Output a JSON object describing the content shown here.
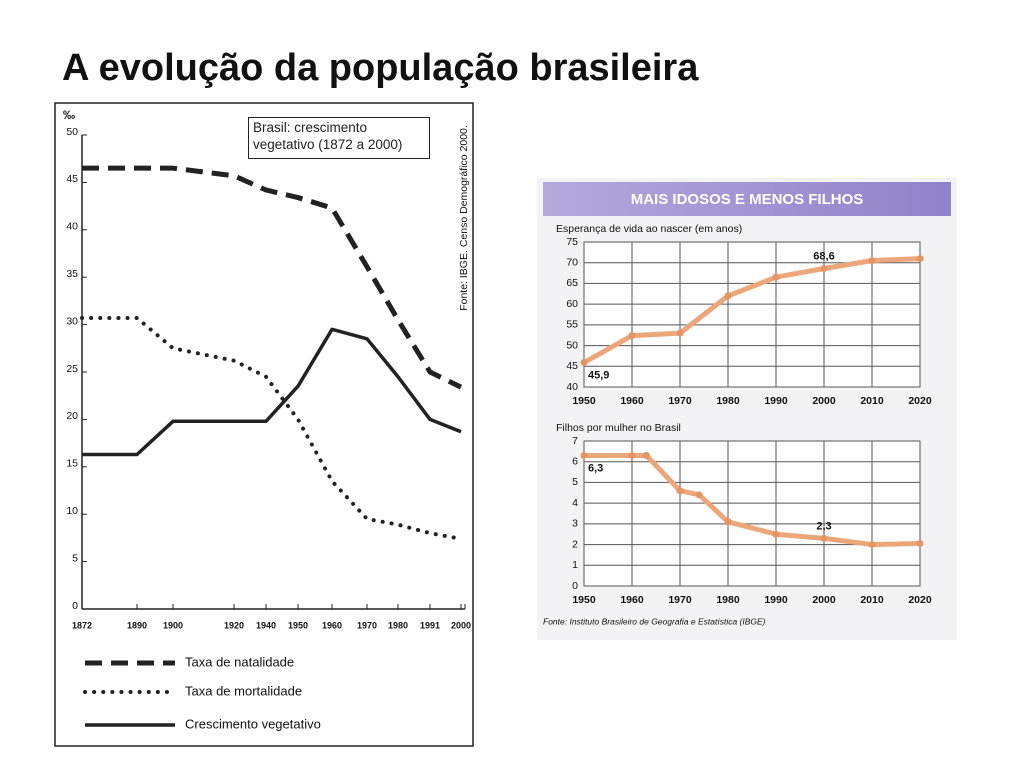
{
  "title": "A evolução da população brasileira",
  "panel": {
    "title": "MAIS IDOSOS E MENOS FILHOS",
    "source": "Fonte: Instituto Brasileiro de Geografia e Estatística (IBGE)"
  },
  "chart_data": [
    {
      "type": "line",
      "ylabel": "‰",
      "annotation": "Brasil: crescimento vegetativo (1872 a 2000)",
      "source": "Fonte: IBGE. Censo Demográfico 2000.",
      "categories": [
        "1872",
        "1890",
        "1900",
        "1920",
        "1940",
        "1950",
        "1960",
        "1970",
        "1980",
        "1991",
        "2000"
      ],
      "ylim": [
        0,
        50
      ],
      "yticks": [
        0,
        5,
        10,
        15,
        20,
        25,
        30,
        35,
        40,
        45,
        50
      ],
      "grid": false,
      "series": [
        {
          "name": "Taxa de natalidade",
          "color": "#222222",
          "dash": "dashed",
          "values": [
            46.5,
            46.5,
            46.5,
            45.7,
            44.2,
            43.4,
            42.3,
            36.1,
            30.5,
            25,
            23.4
          ]
        },
        {
          "name": "Taxa de mortalidade",
          "color": "#222222",
          "dash": "dotted",
          "values": [
            30.7,
            30.7,
            27.5,
            26.2,
            24.5,
            20,
            13.5,
            9.5,
            8.9,
            8,
            7.4
          ]
        },
        {
          "name": "Crescimento vegetativo",
          "color": "#222222",
          "dash": "solid",
          "values": [
            16.3,
            16.3,
            19.8,
            19.8,
            19.8,
            23.5,
            29.5,
            28.5,
            24.5,
            20,
            18.7
          ]
        }
      ]
    },
    {
      "type": "line",
      "ylabel": "Esperança de vida ao nascer (em anos)",
      "xlim": [
        1950,
        2020
      ],
      "xticks": [
        1950,
        1960,
        1970,
        1980,
        1990,
        2000,
        2010,
        2020
      ],
      "ylim": [
        40,
        75
      ],
      "yticks": [
        40,
        45,
        50,
        55,
        60,
        65,
        70,
        75
      ],
      "grid": true,
      "series": [
        {
          "color": "#eba77a",
          "x": [
            1950,
            1960,
            1970,
            1980,
            1990,
            2000,
            2010,
            2020
          ],
          "values": [
            45.9,
            52.4,
            53,
            62,
            66.5,
            68.6,
            70.5,
            71
          ],
          "value_labels": [
            "45,9",
            null,
            null,
            null,
            null,
            "68,6",
            null,
            null
          ]
        }
      ]
    },
    {
      "type": "line",
      "ylabel": "Filhos por mulher no Brasil",
      "xlim": [
        1950,
        2020
      ],
      "xticks": [
        1950,
        1960,
        1970,
        1980,
        1990,
        2000,
        2010,
        2020
      ],
      "ylim": [
        0,
        7
      ],
      "yticks": [
        0,
        1,
        2,
        3,
        4,
        5,
        6,
        7
      ],
      "grid": true,
      "series": [
        {
          "color": "#eba77a",
          "x": [
            1950,
            1960,
            1963,
            1970,
            1974,
            1980,
            1990,
            2000,
            2010,
            2020
          ],
          "values": [
            6.3,
            6.3,
            6.3,
            4.6,
            4.4,
            3.1,
            2.5,
            2.3,
            2.0,
            2.05
          ],
          "value_labels": [
            "6,3",
            null,
            null,
            null,
            null,
            null,
            null,
            "2,3",
            null,
            null
          ]
        }
      ]
    }
  ]
}
